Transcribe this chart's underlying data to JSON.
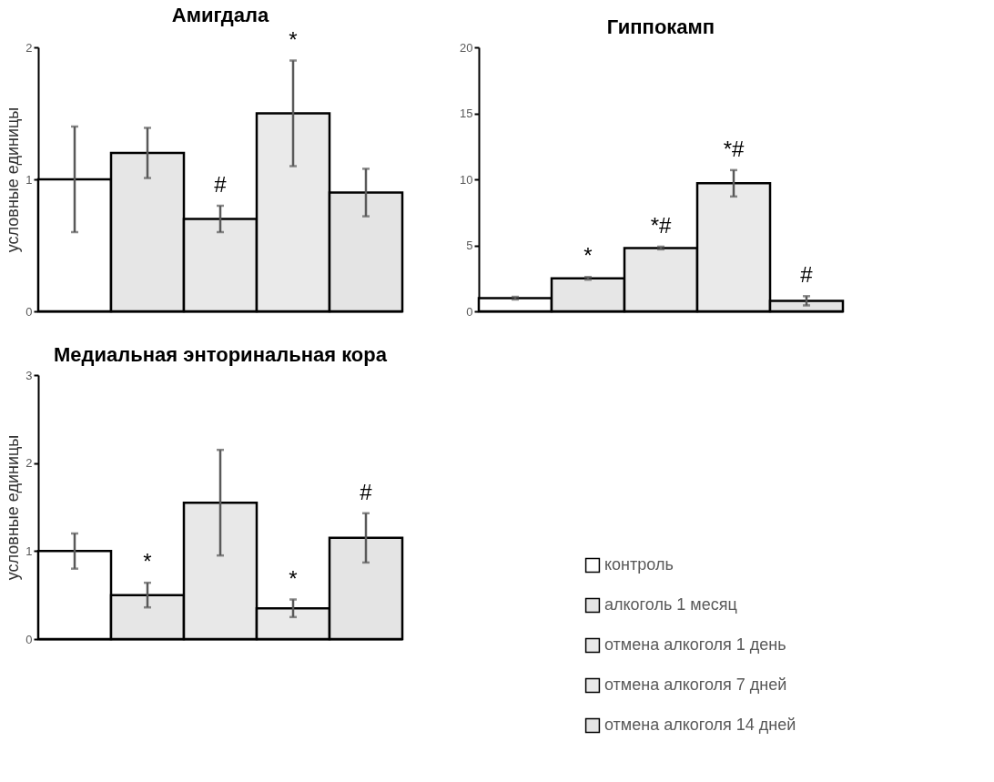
{
  "chart_data": [
    {
      "type": "bar",
      "title": "Амигдала",
      "ylabel": "условные единицы",
      "categories": [
        null
      ],
      "ylim": [
        0,
        2
      ],
      "yticks": [
        0,
        1,
        2
      ],
      "grid": false,
      "legend": "right",
      "series": [
        {
          "name": "контроль",
          "color": "#ffffff",
          "values": [
            1.0
          ],
          "errors": [
            0.4
          ],
          "value_labels": [
            null
          ]
        },
        {
          "name": "алкоголь 1 месяц",
          "color": "#e6e6e6",
          "values": [
            1.2
          ],
          "errors": [
            0.19
          ],
          "value_labels": [
            null
          ]
        },
        {
          "name": "отмена алкоголя 1 день",
          "color": "#e8e8e8",
          "values": [
            0.7
          ],
          "errors": [
            0.1
          ],
          "value_labels": [
            "#"
          ]
        },
        {
          "name": "отмена алкоголя 7 дней",
          "color": "#eaeaea",
          "values": [
            1.5
          ],
          "errors": [
            0.4
          ],
          "value_labels": [
            "*"
          ]
        },
        {
          "name": "отмена алкоголя 14 дней",
          "color": "#e4e4e4",
          "values": [
            0.9
          ],
          "errors": [
            0.18
          ],
          "value_labels": [
            null
          ]
        }
      ]
    },
    {
      "type": "bar",
      "title": "Гиппокамп",
      "categories": [
        null
      ],
      "ylim": [
        0,
        20
      ],
      "yticks": [
        0,
        5,
        10,
        15,
        20
      ],
      "grid": false,
      "legend": "right",
      "series": [
        {
          "name": "контроль",
          "color": "#ffffff",
          "values": [
            1.0
          ],
          "errors": [
            0.1
          ],
          "value_labels": [
            null
          ]
        },
        {
          "name": "алкоголь 1 месяц",
          "color": "#e6e6e6",
          "values": [
            2.5
          ],
          "errors": [
            0.1
          ],
          "value_labels": [
            "*"
          ]
        },
        {
          "name": "отмена алкоголя 1 день",
          "color": "#e8e8e8",
          "values": [
            4.8
          ],
          "errors": [
            0.1
          ],
          "value_labels": [
            "*#"
          ]
        },
        {
          "name": "отмена алкоголя 7 дней",
          "color": "#eaeaea",
          "values": [
            9.7
          ],
          "errors": [
            1.0
          ],
          "value_labels": [
            "*#"
          ]
        },
        {
          "name": "отмена алкоголя 14 дней",
          "color": "#e4e4e4",
          "values": [
            0.8
          ],
          "errors": [
            0.35
          ],
          "value_labels": [
            "#"
          ]
        }
      ]
    },
    {
      "type": "bar",
      "title": "Медиальная энторинальная кора",
      "ylabel": "условные единицы",
      "categories": [
        null
      ],
      "ylim": [
        0,
        3
      ],
      "yticks": [
        0,
        1,
        2,
        3
      ],
      "grid": false,
      "legend": "right",
      "series": [
        {
          "name": "контроль",
          "color": "#ffffff",
          "values": [
            1.0
          ],
          "errors": [
            0.2
          ],
          "value_labels": [
            null
          ]
        },
        {
          "name": "алкоголь 1 месяц",
          "color": "#e6e6e6",
          "values": [
            0.5
          ],
          "errors": [
            0.14
          ],
          "value_labels": [
            "*"
          ]
        },
        {
          "name": "отмена алкоголя 1 день",
          "color": "#e8e8e8",
          "values": [
            1.55
          ],
          "errors": [
            0.6
          ],
          "value_labels": [
            null
          ]
        },
        {
          "name": "отмена алкоголя 7 дней",
          "color": "#eaeaea",
          "values": [
            0.35
          ],
          "errors": [
            0.1
          ],
          "value_labels": [
            "*"
          ]
        },
        {
          "name": "отмена алкоголя 14 дней",
          "color": "#e4e4e4",
          "values": [
            1.15
          ],
          "errors": [
            0.28
          ],
          "value_labels": [
            "#"
          ]
        }
      ]
    }
  ]
}
